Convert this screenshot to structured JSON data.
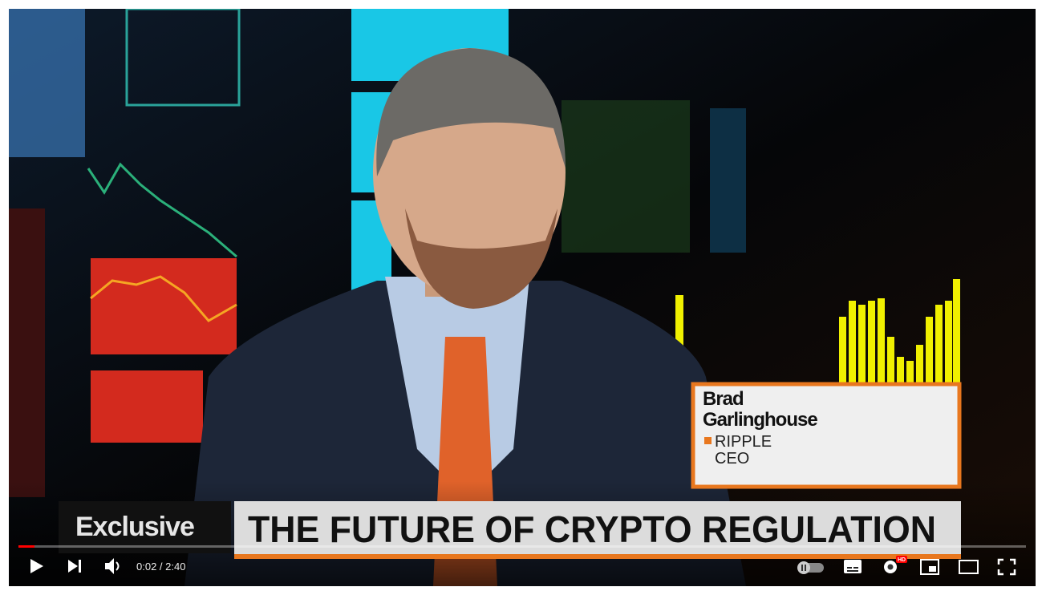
{
  "player": {
    "lower_third": {
      "name_lines": [
        "Brad",
        "Garlinghouse"
      ],
      "org": "RIPPLE",
      "role": "CEO"
    },
    "banner": {
      "tag": "Exclusive",
      "headline": "THE FUTURE OF CRYPTO REGULATION"
    },
    "controls": {
      "time": "0:02 / 2:40",
      "quality_badge": "HD"
    }
  }
}
